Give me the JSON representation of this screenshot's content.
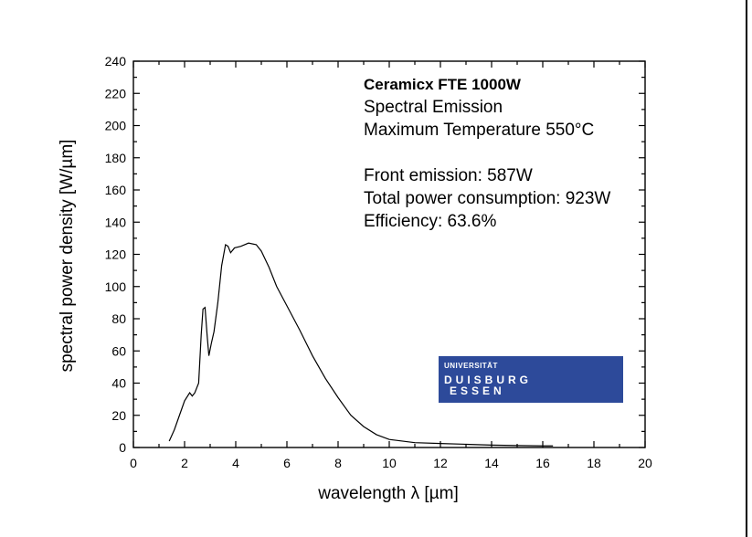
{
  "chart_data": {
    "type": "line",
    "xlabel": "wavelength λ [µm]",
    "ylabel": "spectral power density [W/µm]",
    "xlim": [
      0,
      20
    ],
    "ylim": [
      0,
      240
    ],
    "xticks": [
      0,
      2,
      4,
      6,
      8,
      10,
      12,
      14,
      16,
      18,
      20
    ],
    "yticks": [
      0,
      20,
      40,
      60,
      80,
      100,
      120,
      140,
      160,
      180,
      200,
      220,
      240
    ],
    "grid": false,
    "series": [
      {
        "x": [
          1.4,
          1.6,
          1.8,
          2.0,
          2.2,
          2.3,
          2.4,
          2.55,
          2.65,
          2.72,
          2.8,
          2.88,
          2.95,
          3.05,
          3.15,
          3.3,
          3.45,
          3.6,
          3.7,
          3.8,
          3.95,
          4.2,
          4.5,
          4.8,
          5.0,
          5.3,
          5.6,
          6.0,
          6.5,
          7.0,
          7.5,
          8.0,
          8.5,
          9.0,
          9.5,
          10.0,
          10.5,
          11.0,
          12.0,
          13.0,
          14.0,
          15.0,
          16.0,
          16.4
        ],
        "y": [
          4,
          11,
          20,
          29,
          34,
          32,
          34,
          40,
          70,
          86,
          87,
          70,
          57,
          65,
          72,
          90,
          113,
          126,
          125,
          121,
          124,
          125,
          127,
          126,
          122,
          112,
          100,
          88,
          73,
          57,
          43,
          31,
          20,
          13,
          8,
          5,
          4,
          3,
          2.5,
          2,
          1.5,
          1.2,
          1,
          1
        ]
      }
    ],
    "annotations": [
      "Ceramicx FTE 1000W",
      "Spectral Emission",
      "Maximum Temperature 550°C",
      "Front emission: 587W",
      "Total power consumption: 923W",
      "Efficiency:  63.6%"
    ]
  },
  "logo": {
    "line1": "UNIVERSITÄT",
    "line2": "DUISBURG",
    "line3": "ESSEN",
    "color": "#2d4a9a"
  }
}
